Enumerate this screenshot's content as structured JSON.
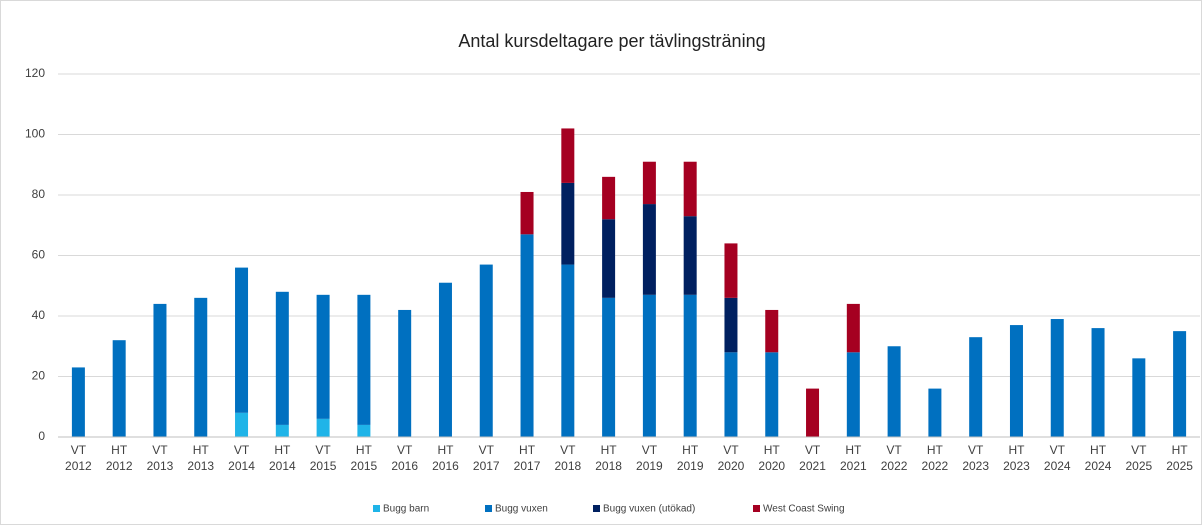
{
  "chart_data": {
    "type": "bar",
    "stacked": true,
    "title": "Antal kursdeltagare per tävlingsträning",
    "categories": [
      [
        "VT",
        "2012"
      ],
      [
        "HT",
        "2012"
      ],
      [
        "VT",
        "2013"
      ],
      [
        "HT",
        "2013"
      ],
      [
        "VT",
        "2014"
      ],
      [
        "HT",
        "2014"
      ],
      [
        "VT",
        "2015"
      ],
      [
        "HT",
        "2015"
      ],
      [
        "VT",
        "2016"
      ],
      [
        "HT",
        "2016"
      ],
      [
        "VT",
        "2017"
      ],
      [
        "HT",
        "2017"
      ],
      [
        "VT",
        "2018"
      ],
      [
        "HT",
        "2018"
      ],
      [
        "VT",
        "2019"
      ],
      [
        "HT",
        "2019"
      ],
      [
        "VT",
        "2020"
      ],
      [
        "HT",
        "2020"
      ],
      [
        "VT",
        "2021"
      ],
      [
        "HT",
        "2021"
      ],
      [
        "VT",
        "2022"
      ],
      [
        "HT",
        "2022"
      ],
      [
        "VT",
        "2023"
      ],
      [
        "HT",
        "2023"
      ],
      [
        "VT",
        "2024"
      ],
      [
        "HT",
        "2024"
      ],
      [
        "VT",
        "2025"
      ],
      [
        "HT",
        "2025"
      ]
    ],
    "series": [
      {
        "name": "Bugg barn",
        "color": "#1fb4e8",
        "values": [
          0,
          0,
          0,
          0,
          8,
          4,
          6,
          4,
          0,
          0,
          0,
          0,
          0,
          0,
          0,
          0,
          0,
          0,
          0,
          0,
          0,
          0,
          0,
          0,
          0,
          0,
          0,
          0
        ]
      },
      {
        "name": "Bugg vuxen",
        "color": "#0070c0",
        "values": [
          23,
          32,
          44,
          46,
          48,
          44,
          41,
          43,
          42,
          51,
          57,
          67,
          57,
          46,
          47,
          47,
          28,
          28,
          0,
          28,
          30,
          16,
          33,
          37,
          39,
          36,
          26,
          35
        ]
      },
      {
        "name": "Bugg vuxen (utökad)",
        "color": "#002060",
        "values": [
          0,
          0,
          0,
          0,
          0,
          0,
          0,
          0,
          0,
          0,
          0,
          0,
          27,
          26,
          30,
          26,
          18,
          0,
          0,
          0,
          0,
          0,
          0,
          0,
          0,
          0,
          0,
          0
        ]
      },
      {
        "name": "West Coast Swing",
        "color": "#a50021",
        "values": [
          0,
          0,
          0,
          0,
          0,
          0,
          0,
          0,
          0,
          0,
          0,
          14,
          18,
          14,
          14,
          18,
          18,
          14,
          16,
          16,
          0,
          0,
          0,
          0,
          0,
          0,
          0,
          0
        ]
      }
    ],
    "ylim": [
      0,
      120
    ],
    "yticks": [
      0,
      20,
      40,
      60,
      80,
      100,
      120
    ],
    "grid": true,
    "legend": "bottom"
  }
}
